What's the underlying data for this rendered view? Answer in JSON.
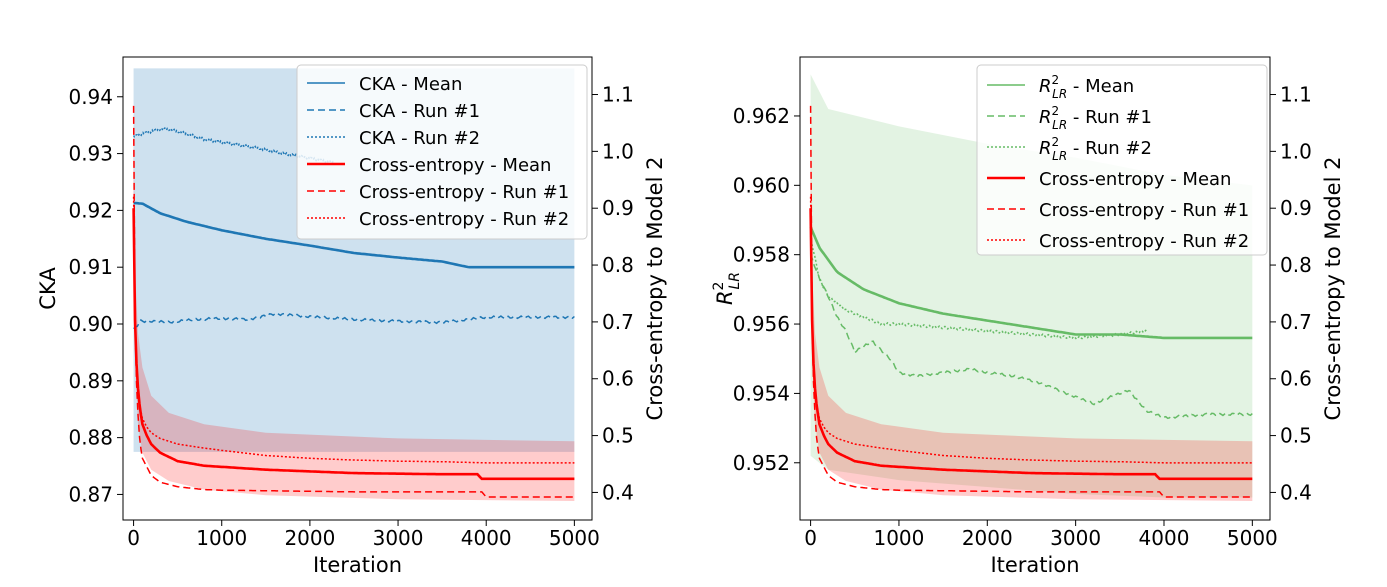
{
  "chart_data": [
    {
      "type": "line",
      "xlabel": "Iteration",
      "ylabel_left": "CKA",
      "ylabel_right": "Cross-entropy to Model 2",
      "xlim": [
        -120,
        5200
      ],
      "ylim_left": [
        0.8655,
        0.947
      ],
      "ylim_right": [
        0.3515,
        1.166
      ],
      "x_ticks": [
        0,
        1000,
        2000,
        3000,
        4000,
        5000
      ],
      "y_ticks_left": [
        0.87,
        0.88,
        0.89,
        0.9,
        0.91,
        0.92,
        0.93,
        0.94
      ],
      "y_ticks_right": [
        0.4,
        0.5,
        0.6,
        0.7,
        0.8,
        0.9,
        1.0,
        1.1
      ],
      "x_tick_labels": [
        "0",
        "1000",
        "2000",
        "3000",
        "4000",
        "5000"
      ],
      "y_tick_labels_left": [
        "0.87",
        "0.88",
        "0.89",
        "0.90",
        "0.91",
        "0.92",
        "0.93",
        "0.94"
      ],
      "y_tick_labels_right": [
        "0.4",
        "0.5",
        "0.6",
        "0.7",
        "0.8",
        "0.9",
        "1.0",
        "1.1"
      ],
      "legend_position": "top-right",
      "legend": [
        {
          "label": "CKA - Mean",
          "color": "#1f77b4",
          "style": "solid",
          "width": "thin"
        },
        {
          "label": "CKA - Run #1",
          "color": "#1f77b4",
          "style": "dashed",
          "width": "thin"
        },
        {
          "label": "CKA - Run #2",
          "color": "#1f77b4",
          "style": "dotted",
          "width": "thin"
        },
        {
          "label": "Cross-entropy - Mean",
          "color": "#ff0000",
          "style": "solid",
          "width": "thick"
        },
        {
          "label": "Cross-entropy - Run #1",
          "color": "#ff0000",
          "style": "dashed",
          "width": "thin"
        },
        {
          "label": "Cross-entropy - Run #2",
          "color": "#ff0000",
          "style": "dotted",
          "width": "thin"
        }
      ],
      "series_left": [
        {
          "name": "CKA - Mean",
          "color": "#1f77b4",
          "style": "solid",
          "x": [
            0,
            100,
            300,
            600,
            1000,
            1500,
            2000,
            2500,
            3000,
            3500,
            3800,
            4000,
            5000
          ],
          "y": [
            0.9213,
            0.9212,
            0.9195,
            0.918,
            0.9165,
            0.915,
            0.9138,
            0.9125,
            0.9117,
            0.911,
            0.91,
            0.91,
            0.91
          ]
        },
        {
          "name": "CKA - Run #1",
          "color": "#1f77b4",
          "style": "dashed",
          "x": [
            0,
            80,
            200,
            400,
            700,
            1000,
            1300,
            1600,
            2000,
            2500,
            3000,
            3500,
            3800,
            4000,
            5000
          ],
          "y": [
            0.899,
            0.9005,
            0.9005,
            0.9003,
            0.9008,
            0.901,
            0.9008,
            0.9018,
            0.9013,
            0.9008,
            0.9005,
            0.9003,
            0.9008,
            0.9012,
            0.9012
          ]
        },
        {
          "name": "CKA - Run #2",
          "color": "#1f77b4",
          "style": "dotted",
          "x": [
            0,
            100,
            300,
            400,
            600,
            800,
            1000,
            1200,
            1400,
            1700,
            2000,
            2300
          ],
          "y": [
            0.933,
            0.9335,
            0.9343,
            0.9343,
            0.9335,
            0.9325,
            0.932,
            0.9315,
            0.931,
            0.93,
            0.9292,
            0.9283
          ]
        }
      ],
      "bands_left": [
        {
          "name": "CKA band",
          "color": "#1f77b4",
          "opacity": 0.22,
          "x": [
            0,
            5000
          ],
          "upper": [
            0.945,
            0.945
          ],
          "lower": [
            0.8775,
            0.8775
          ]
        }
      ],
      "series_right": [
        {
          "name": "Cross-entropy - Mean",
          "color": "#ff0000",
          "style": "solid",
          "x": [
            0,
            10,
            20,
            40,
            70,
            100,
            150,
            200,
            300,
            500,
            800,
            1000,
            1500,
            2000,
            2500,
            3000,
            3500,
            3900,
            3950,
            5000
          ],
          "y": [
            0.9,
            0.75,
            0.68,
            0.6,
            0.55,
            0.52,
            0.5,
            0.485,
            0.47,
            0.455,
            0.447,
            0.445,
            0.44,
            0.437,
            0.434,
            0.433,
            0.432,
            0.432,
            0.424,
            0.424
          ]
        },
        {
          "name": "Cross-entropy - Run #1",
          "color": "#ff0000",
          "style": "dashed",
          "x": [
            0,
            8,
            20,
            40,
            70,
            100,
            150,
            200,
            300,
            500,
            800,
            1000,
            1500,
            2000,
            2500,
            3000,
            3500,
            3950,
            4000,
            5000
          ],
          "y": [
            1.08,
            0.8,
            0.66,
            0.56,
            0.49,
            0.46,
            0.445,
            0.43,
            0.418,
            0.41,
            0.405,
            0.404,
            0.403,
            0.402,
            0.401,
            0.401,
            0.401,
            0.401,
            0.392,
            0.392
          ]
        },
        {
          "name": "Cross-entropy - Run #2",
          "color": "#ff0000",
          "style": "dotted",
          "x": [
            0,
            10,
            30,
            60,
            100,
            150,
            200,
            300,
            500,
            800,
            1000,
            1500,
            2000,
            2500,
            3000,
            3500,
            4000,
            5000
          ],
          "y": [
            0.92,
            0.76,
            0.64,
            0.56,
            0.53,
            0.515,
            0.505,
            0.495,
            0.485,
            0.478,
            0.474,
            0.465,
            0.46,
            0.457,
            0.455,
            0.454,
            0.452,
            0.452
          ]
        }
      ],
      "bands_right": [
        {
          "name": "Cross-entropy band",
          "color": "#ff0000",
          "opacity": 0.2,
          "x": [
            0,
            20,
            50,
            100,
            200,
            400,
            800,
            1500,
            3000,
            5000
          ],
          "upper": [
            1.05,
            0.78,
            0.68,
            0.62,
            0.57,
            0.54,
            0.52,
            0.505,
            0.495,
            0.49
          ],
          "lower": [
            0.9,
            0.62,
            0.52,
            0.47,
            0.44,
            0.42,
            0.405,
            0.395,
            0.388,
            0.385
          ]
        }
      ]
    },
    {
      "type": "line",
      "xlabel": "Iteration",
      "ylabel_left": "R²_LR",
      "ylabel_left_main": "R",
      "ylabel_left_sup": "2",
      "ylabel_left_sub": "LR",
      "ylabel_right": "Cross-entropy to Model 2",
      "xlim": [
        -120,
        5200
      ],
      "ylim_left": [
        0.95035,
        0.9637
      ],
      "ylim_right": [
        0.3515,
        1.166
      ],
      "x_ticks": [
        0,
        1000,
        2000,
        3000,
        4000,
        5000
      ],
      "y_ticks_left": [
        0.952,
        0.954,
        0.956,
        0.958,
        0.96,
        0.962
      ],
      "y_ticks_right": [
        0.4,
        0.5,
        0.6,
        0.7,
        0.8,
        0.9,
        1.0,
        1.1
      ],
      "x_tick_labels": [
        "0",
        "1000",
        "2000",
        "3000",
        "4000",
        "5000"
      ],
      "y_tick_labels_left": [
        "0.952",
        "0.954",
        "0.956",
        "0.958",
        "0.960",
        "0.962"
      ],
      "y_tick_labels_right": [
        "0.4",
        "0.5",
        "0.6",
        "0.7",
        "0.8",
        "0.9",
        "1.0",
        "1.1"
      ],
      "legend_position": "top-right",
      "legend": [
        {
          "label_main": "R",
          "label_sup": "2",
          "label_sub": "LR",
          "label_rest": " - Mean",
          "color": "#66bb66",
          "style": "solid",
          "width": "thin"
        },
        {
          "label_main": "R",
          "label_sup": "2",
          "label_sub": "LR",
          "label_rest": " - Run #1",
          "color": "#66bb66",
          "style": "dashed",
          "width": "thin"
        },
        {
          "label_main": "R",
          "label_sup": "2",
          "label_sub": "LR",
          "label_rest": " - Run #2",
          "color": "#66bb66",
          "style": "dotted",
          "width": "thin"
        },
        {
          "label": "Cross-entropy - Mean",
          "color": "#ff0000",
          "style": "solid",
          "width": "thick"
        },
        {
          "label": "Cross-entropy - Run #1",
          "color": "#ff0000",
          "style": "dashed",
          "width": "thin"
        },
        {
          "label": "Cross-entropy - Run #2",
          "color": "#ff0000",
          "style": "dotted",
          "width": "thin"
        }
      ],
      "series_left": [
        {
          "name": "R2 - Mean",
          "color": "#66bb66",
          "style": "solid",
          "x": [
            0,
            100,
            300,
            600,
            1000,
            1500,
            2000,
            2500,
            3000,
            3500,
            4000,
            4500,
            5000
          ],
          "y": [
            0.9588,
            0.9582,
            0.9575,
            0.957,
            0.9566,
            0.9563,
            0.9561,
            0.9559,
            0.9557,
            0.9557,
            0.9556,
            0.9556,
            0.9556
          ]
        },
        {
          "name": "R2 - Run #1",
          "color": "#66bb66",
          "style": "dashed",
          "x": [
            0,
            100,
            200,
            300,
            400,
            500,
            700,
            900,
            1000,
            1200,
            1500,
            1800,
            2000,
            2300,
            2600,
            2800,
            3000,
            3200,
            3400,
            3600,
            3700,
            3800,
            4000,
            4500,
            5000
          ],
          "y": [
            0.958,
            0.9573,
            0.9568,
            0.9562,
            0.9558,
            0.9552,
            0.9555,
            0.955,
            0.9546,
            0.9545,
            0.9546,
            0.9547,
            0.9546,
            0.9545,
            0.9543,
            0.9541,
            0.9539,
            0.9537,
            0.9539,
            0.9541,
            0.9538,
            0.9535,
            0.9533,
            0.9534,
            0.9534
          ]
        },
        {
          "name": "R2 - Run #2",
          "color": "#66bb66",
          "style": "dotted",
          "x": [
            0,
            100,
            200,
            400,
            600,
            800,
            1000,
            1500,
            2000,
            2500,
            3000,
            3500,
            3800
          ],
          "y": [
            0.9585,
            0.9573,
            0.9568,
            0.9564,
            0.9562,
            0.956,
            0.956,
            0.9559,
            0.9558,
            0.9557,
            0.9556,
            0.9557,
            0.9558
          ]
        }
      ],
      "bands_left": [
        {
          "name": "R2 band",
          "color": "#66bb66",
          "opacity": 0.18,
          "x": [
            0,
            200,
            1000,
            2000,
            3000,
            4000,
            5000
          ],
          "upper": [
            0.9632,
            0.9622,
            0.9617,
            0.9612,
            0.9608,
            0.9603,
            0.96
          ],
          "lower": [
            0.9522,
            0.9518,
            0.9515,
            0.9513,
            0.9511,
            0.951,
            0.951
          ]
        }
      ],
      "series_right": [
        {
          "name": "Cross-entropy - Mean",
          "color": "#ff0000",
          "style": "solid",
          "x": [
            0,
            10,
            20,
            40,
            70,
            100,
            150,
            200,
            300,
            500,
            800,
            1000,
            1500,
            2000,
            2500,
            3000,
            3500,
            3900,
            3950,
            5000
          ],
          "y": [
            0.9,
            0.75,
            0.68,
            0.6,
            0.55,
            0.52,
            0.5,
            0.485,
            0.47,
            0.455,
            0.447,
            0.445,
            0.44,
            0.437,
            0.434,
            0.433,
            0.432,
            0.432,
            0.424,
            0.424
          ]
        },
        {
          "name": "Cross-entropy - Run #1",
          "color": "#ff0000",
          "style": "dashed",
          "x": [
            0,
            8,
            20,
            40,
            70,
            100,
            150,
            200,
            300,
            500,
            800,
            1000,
            1500,
            2000,
            2500,
            3000,
            3500,
            3950,
            4000,
            5000
          ],
          "y": [
            1.08,
            0.8,
            0.66,
            0.56,
            0.49,
            0.46,
            0.445,
            0.43,
            0.418,
            0.41,
            0.405,
            0.404,
            0.403,
            0.402,
            0.401,
            0.401,
            0.401,
            0.401,
            0.392,
            0.392
          ]
        },
        {
          "name": "Cross-entropy - Run #2",
          "color": "#ff0000",
          "style": "dotted",
          "x": [
            0,
            10,
            30,
            60,
            100,
            150,
            200,
            300,
            500,
            800,
            1000,
            1500,
            2000,
            2500,
            3000,
            3500,
            4000,
            5000
          ],
          "y": [
            0.92,
            0.76,
            0.64,
            0.56,
            0.53,
            0.515,
            0.505,
            0.495,
            0.485,
            0.478,
            0.474,
            0.465,
            0.46,
            0.457,
            0.455,
            0.454,
            0.452,
            0.452
          ]
        }
      ],
      "bands_right": [
        {
          "name": "Cross-entropy band",
          "color": "#ff0000",
          "opacity": 0.2,
          "x": [
            0,
            20,
            50,
            100,
            200,
            400,
            800,
            1500,
            3000,
            5000
          ],
          "upper": [
            1.05,
            0.78,
            0.68,
            0.62,
            0.57,
            0.54,
            0.52,
            0.505,
            0.495,
            0.49
          ],
          "lower": [
            0.9,
            0.62,
            0.52,
            0.47,
            0.44,
            0.42,
            0.405,
            0.395,
            0.388,
            0.385
          ]
        }
      ]
    }
  ]
}
